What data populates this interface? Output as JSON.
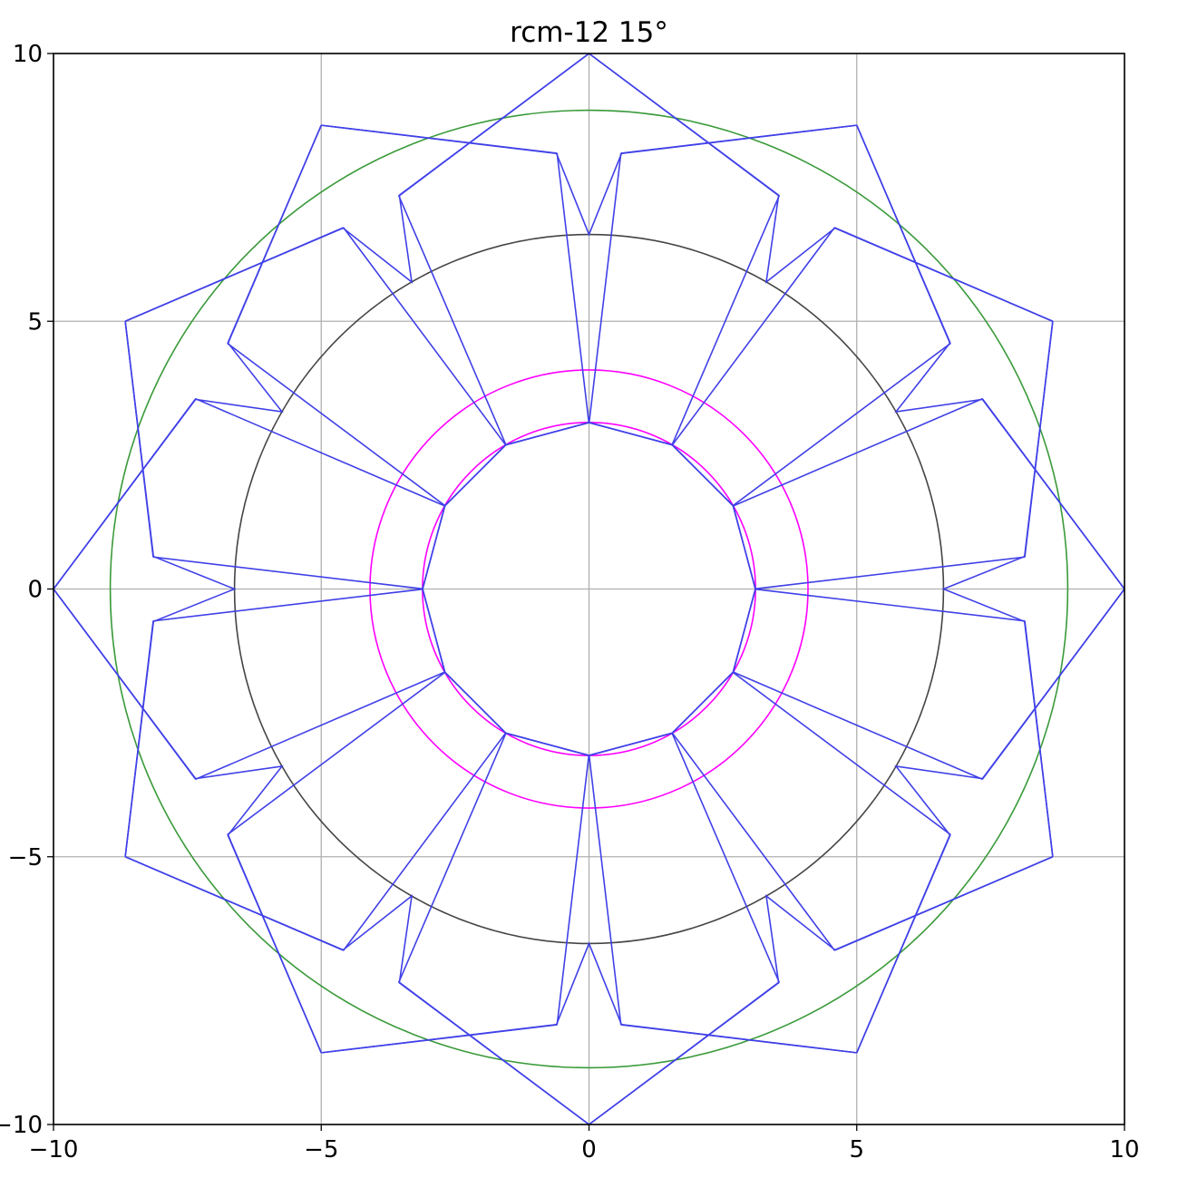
{
  "chart_data": {
    "type": "line",
    "title": "rcm-12 15°",
    "xlabel": "",
    "ylabel": "",
    "xlim": [
      -10,
      10
    ],
    "ylim": [
      -10,
      10
    ],
    "grid": true,
    "aspect": "equal",
    "x_ticks": [
      -10,
      -5,
      0,
      5,
      10
    ],
    "y_ticks": [
      -10,
      -5,
      0,
      5,
      10
    ],
    "x_tick_labels": [
      "−10",
      "−5",
      "0",
      "5",
      "10"
    ],
    "y_tick_labels": [
      "−10",
      "−5",
      "0",
      "5",
      "10"
    ],
    "circles": [
      {
        "role": "outer",
        "r": 8.94,
        "color": "#3a9a3a"
      },
      {
        "role": "middle",
        "r": 6.62,
        "color": "#444444"
      },
      {
        "role": "inner-outer",
        "r": 4.09,
        "color": "#ff00ff"
      },
      {
        "role": "inner",
        "r": 3.11,
        "color": "#ff00ff"
      }
    ],
    "series": [
      {
        "color": "#4040e8",
        "symmetry": 12,
        "segments": [
          [
            [
              10,
              0
            ],
            [
              6.62,
              0
            ]
          ],
          [
            [
              6.62,
              0
            ],
            [
              8.14,
              0.61
            ]
          ],
          [
            [
              8.14,
              0.61
            ],
            [
              8.66,
              5.0
            ]
          ],
          [
            [
              6.62,
              0
            ],
            [
              3.11,
              0
            ]
          ],
          [
            [
              3.11,
              0
            ],
            [
              6.62,
              0
            ]
          ],
          [
            [
              6.62,
              0
            ],
            [
              4.09,
              1.09
            ]
          ],
          [
            [
              4.09,
              1.09
            ],
            [
              2.69,
              1.55
            ]
          ],
          [
            [
              2.69,
              1.55
            ],
            [
              2.9,
              2.89
            ]
          ],
          [
            [
              6.62,
              0
            ],
            [
              7.34,
              3.55
            ]
          ]
        ],
        "polylines": [
          [
            [
              10,
              0
            ],
            [
              7.34,
              3.55
            ],
            [
              2.69,
              1.55
            ],
            [
              3.11,
              0
            ],
            [
              2.69,
              -1.55
            ],
            [
              7.34,
              -3.55
            ],
            [
              10,
              0
            ]
          ],
          [
            [
              8.66,
              5.0
            ],
            [
              8.14,
              0.61
            ],
            [
              6.62,
              0
            ],
            [
              8.14,
              -0.61
            ],
            [
              8.66,
              -5.0
            ]
          ]
        ]
      }
    ]
  }
}
